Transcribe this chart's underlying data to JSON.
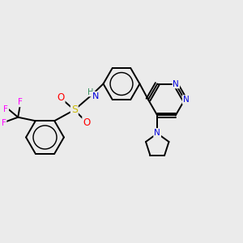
{
  "background_color": "#ebebeb",
  "atom_colors": {
    "C": "#000000",
    "N": "#0000dd",
    "O": "#ff0000",
    "S": "#ccbb00",
    "F": "#ff00ff",
    "H": "#2e8b57"
  },
  "figsize": [
    3.0,
    3.0
  ],
  "dpi": 100,
  "lw": 1.4,
  "font_size": 7.5,
  "ring_font_size": 7.0
}
